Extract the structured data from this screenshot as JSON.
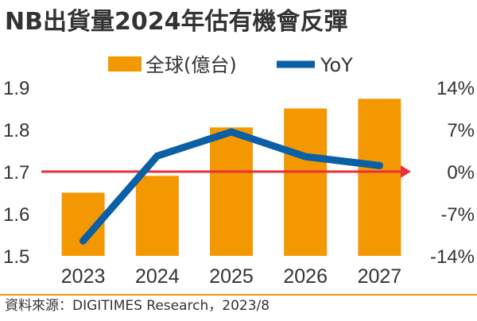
{
  "chart_data": {
    "type": "bar",
    "title": "NB出貨量2024年估有機會反彈",
    "categories": [
      "2023",
      "2024",
      "2025",
      "2026",
      "2027"
    ],
    "series": [
      {
        "name": "全球(億台)",
        "kind": "bar",
        "axis": "left",
        "color": "#F39800",
        "values": [
          1.65,
          1.69,
          1.805,
          1.85,
          1.873
        ]
      },
      {
        "name": "YoY",
        "kind": "line",
        "axis": "right",
        "color": "#0B5FA5",
        "values": [
          -11.5,
          2.6,
          6.6,
          2.5,
          1.0
        ]
      }
    ],
    "y_left": {
      "min": 1.5,
      "max": 1.9,
      "ticks": [
        "1.5",
        "1.6",
        "1.7",
        "1.8",
        "1.9"
      ]
    },
    "y_right": {
      "min": -14,
      "max": 14,
      "ticks": [
        "14%",
        "7%",
        "0%",
        "-7%",
        "-14%"
      ]
    },
    "reference_line": {
      "axis": "right",
      "value": 0,
      "color": "#E8303A"
    },
    "source": "資料來源：DIGITIMES Research，2023/8"
  }
}
